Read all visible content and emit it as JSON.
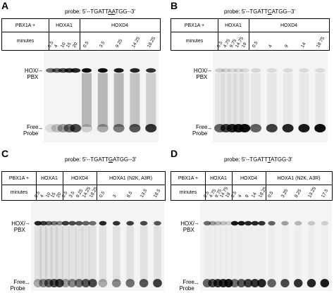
{
  "panels": [
    {
      "id": "A",
      "probe": {
        "pre": "probe: 5'--TGATT",
        "mid": "AA",
        "post": "TGG--3'"
      },
      "groups": [
        {
          "name": "PBX1A +",
          "lanes": []
        },
        {
          "name": "HOXA1",
          "lanes": [
            "0.5",
            "4",
            "10",
            "15",
            "20"
          ]
        },
        {
          "name": "HOXD4",
          "lanes": [
            "0.5",
            "3.5",
            "9.25",
            "14.25",
            "18.25"
          ]
        }
      ],
      "minutes_label": "minutes",
      "band_label": "HOX/ PBX",
      "free_label": "Free Probe"
    },
    {
      "id": "B",
      "probe": {
        "pre": "probe: 5'--TGATT",
        "mid": "C",
        "post": "ATGG--3'"
      },
      "groups": [
        {
          "name": "PBX1A +",
          "lanes": []
        },
        {
          "name": "HOXA1",
          "lanes": [
            "0.5",
            "4.75",
            "9.75",
            "14.75",
            "19"
          ]
        },
        {
          "name": "HOXD4",
          "lanes": [
            "0.5",
            "4",
            "9",
            "14",
            "18.75"
          ]
        }
      ],
      "minutes_label": "minutes",
      "band_label": "HOX/ PBX",
      "free_label": "Free Probe"
    },
    {
      "id": "C",
      "probe": {
        "pre": "probe: 5'--TGATT",
        "mid": "G",
        "post": "ATGG--3'"
      },
      "groups": [
        {
          "name": "PBX1A +",
          "lanes": []
        },
        {
          "name": "HOXA1",
          "lanes": [
            "0.5",
            "4",
            "10",
            "15",
            "20"
          ]
        },
        {
          "name": "HOXD4",
          "lanes": [
            "0.5",
            "3.5",
            "9.25",
            "14.25",
            "18.25"
          ]
        },
        {
          "name": "HOXA1 (N2K, A3R)",
          "lanes": [
            "0.5",
            "3",
            "8.5",
            "13.5",
            "18.5"
          ]
        }
      ],
      "minutes_label": "minutes",
      "band_label": "HOX/ PBX",
      "free_label": "Free Probe"
    },
    {
      "id": "D",
      "probe": {
        "pre": "probe: 5'--TGATT",
        "mid": "T",
        "post": "ATGG-3'"
      },
      "groups": [
        {
          "name": "PBX1A +",
          "lanes": []
        },
        {
          "name": "HOXA1",
          "lanes": [
            "0.5",
            "4.75",
            "9.75",
            "14.75",
            "19"
          ]
        },
        {
          "name": "HOXD4",
          "lanes": [
            "0.5",
            "4",
            "9",
            "14",
            "18.25"
          ]
        },
        {
          "name": "HOXA1 (N2K, A3R)",
          "lanes": [
            "0.5",
            "3.25",
            "8.25",
            "13.25",
            "17.5"
          ]
        }
      ],
      "minutes_label": "minutes",
      "band_label": "HOX/ PBX",
      "free_label": "Free Probe"
    }
  ]
}
